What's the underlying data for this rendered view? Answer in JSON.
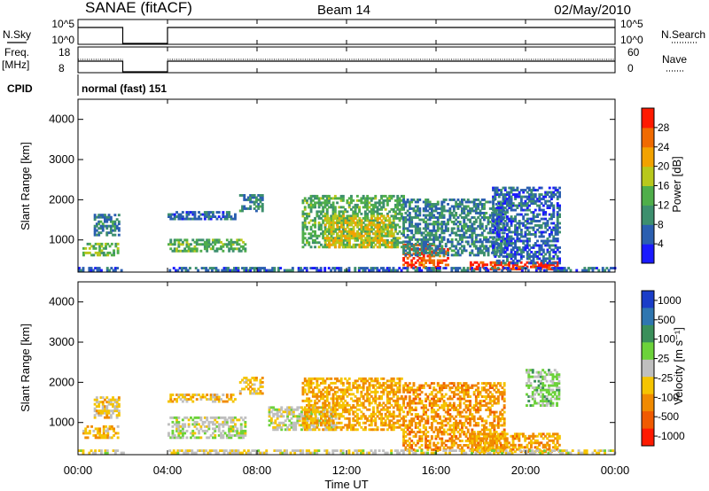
{
  "header": {
    "station": "SANAE (fitACF)",
    "beam": "Beam 14",
    "date": "02/May/2010"
  },
  "time_axis": {
    "ticks": [
      "00:00",
      "04:00",
      "08:00",
      "12:00",
      "16:00",
      "20:00",
      "00:00"
    ],
    "label": "Time UT",
    "range_hours": [
      0,
      24
    ]
  },
  "status_panels": {
    "nsky": {
      "left_label": "N.Sky",
      "left_ticks": [
        "10^5",
        "10^0"
      ],
      "right_label": "N.Search",
      "right_ticks": [
        "10^5",
        "10^0"
      ]
    },
    "freq": {
      "left_label_1": "Freq.",
      "left_label_2": "[MHz]",
      "left_ticks": [
        "18",
        "8"
      ],
      "right_label": "Nave",
      "right_ticks": [
        "60",
        "0"
      ]
    },
    "cpid": {
      "label": "CPID",
      "value": "normal (fast) 151"
    },
    "data_gap_hours": [
      2.0,
      4.0
    ]
  },
  "colors": {
    "power_scale": [
      "#1a1aff",
      "#2b5fb0",
      "#3d8f6e",
      "#4fae4a",
      "#b8c81c",
      "#f2a200",
      "#f06a00",
      "#ff1a00"
    ],
    "velocity_scale": [
      "#1a3dc8",
      "#2f76b0",
      "#3a8f5a",
      "#6cd23a",
      "#bfbfbf",
      "#f5c400",
      "#f08a00",
      "#f05a00",
      "#ff1a00"
    ]
  },
  "chart_data": [
    {
      "type": "heatmap",
      "panel": "power",
      "ylabel": "Slant Range [km]",
      "xlabel": "",
      "y_ticks": [
        1000,
        2000,
        3000,
        4000
      ],
      "ylim": [
        200,
        4500
      ],
      "xlim_hours": [
        0,
        24
      ],
      "colorbar": {
        "label": "Power [dB]",
        "ticks": [
          "4",
          "8",
          "12",
          "16",
          "20",
          "24",
          "28"
        ],
        "range": [
          0,
          30
        ]
      },
      "regions": [
        {
          "t0": 0.2,
          "t1": 1.8,
          "r0": 600,
          "r1": 900,
          "level": 14
        },
        {
          "t0": 0.7,
          "t1": 1.8,
          "r0": 1100,
          "r1": 1600,
          "level": 8
        },
        {
          "t0": 4.0,
          "t1": 7.5,
          "r0": 700,
          "r1": 1000,
          "level": 12
        },
        {
          "t0": 4.0,
          "t1": 7.0,
          "r0": 1500,
          "r1": 1700,
          "level": 6
        },
        {
          "t0": 7.2,
          "t1": 8.2,
          "r0": 1700,
          "r1": 2100,
          "level": 8
        },
        {
          "t0": 10.0,
          "t1": 14.5,
          "r0": 800,
          "r1": 2100,
          "level": 12
        },
        {
          "t0": 11.0,
          "t1": 14.0,
          "r0": 800,
          "r1": 1600,
          "level": 18
        },
        {
          "t0": 14.5,
          "t1": 16.5,
          "r0": 300,
          "r1": 900,
          "level": 26
        },
        {
          "t0": 14.5,
          "t1": 19.0,
          "r0": 600,
          "r1": 2000,
          "level": 8
        },
        {
          "t0": 17.5,
          "t1": 21.5,
          "r0": 250,
          "r1": 450,
          "level": 28
        },
        {
          "t0": 18.5,
          "t1": 21.5,
          "r0": 400,
          "r1": 2300,
          "level": 6
        },
        {
          "t0": 0.0,
          "t1": 24.0,
          "r0": 220,
          "r1": 330,
          "level": 6
        }
      ]
    },
    {
      "type": "heatmap",
      "panel": "velocity",
      "ylabel": "Slant Range [km]",
      "xlabel": "Time UT",
      "y_ticks": [
        1000,
        2000,
        3000,
        4000
      ],
      "ylim": [
        200,
        4500
      ],
      "xlim_hours": [
        0,
        24
      ],
      "colorbar": {
        "label": "Velocity [m s⁻¹]",
        "ticks": [
          "1000",
          "500",
          "100",
          "25",
          "-25",
          "-100",
          "-500",
          "-1000"
        ],
        "range": [
          -1200,
          1200
        ]
      },
      "regions": [
        {
          "t0": 0.2,
          "t1": 1.8,
          "r0": 600,
          "r1": 900,
          "level": -300
        },
        {
          "t0": 0.7,
          "t1": 1.8,
          "r0": 1100,
          "r1": 1600,
          "level": -200
        },
        {
          "t0": 4.0,
          "t1": 7.5,
          "r0": 600,
          "r1": 1100,
          "level": 50
        },
        {
          "t0": 4.0,
          "t1": 7.0,
          "r0": 1500,
          "r1": 1700,
          "level": -250
        },
        {
          "t0": 7.2,
          "t1": 8.2,
          "r0": 1700,
          "r1": 2100,
          "level": -300
        },
        {
          "t0": 8.5,
          "t1": 11.5,
          "r0": 800,
          "r1": 1400,
          "level": 0
        },
        {
          "t0": 10.0,
          "t1": 14.5,
          "r0": 800,
          "r1": 2100,
          "level": -400
        },
        {
          "t0": 14.5,
          "t1": 19.0,
          "r0": 300,
          "r1": 2000,
          "level": -500
        },
        {
          "t0": 17.5,
          "t1": 21.5,
          "r0": 250,
          "r1": 700,
          "level": -450
        },
        {
          "t0": 20.0,
          "t1": 21.5,
          "r0": 1400,
          "r1": 2300,
          "level": 200
        },
        {
          "t0": 0.0,
          "t1": 24.0,
          "r0": 220,
          "r1": 330,
          "level": -60
        }
      ]
    }
  ]
}
